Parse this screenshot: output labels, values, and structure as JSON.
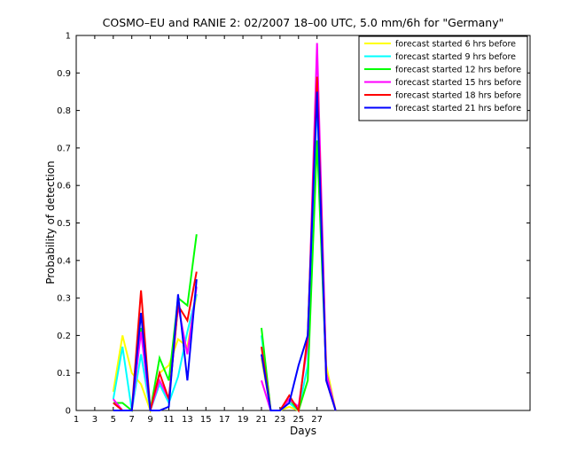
{
  "chart_data": {
    "type": "line",
    "title": "COSMO–EU and RANIE 2: 02/2007 18–00 UTC, 5.0 mm/6h for \"Germany\"",
    "xlabel": "Days",
    "ylabel": "Probability of detection",
    "xlim": [
      1,
      50
    ],
    "ylim": [
      0,
      1
    ],
    "xticks": [
      1,
      3,
      5,
      7,
      9,
      11,
      13,
      15,
      17,
      19,
      21,
      23,
      25,
      27
    ],
    "yticks": [
      0,
      0.1,
      0.2,
      0.3,
      0.4,
      0.5,
      0.6,
      0.7,
      0.8,
      0.9,
      1
    ],
    "ytick_labels": [
      "0",
      "0.1",
      "0.2",
      "0.3",
      "0.4",
      "0.5",
      "0.6",
      "0.7",
      "0.8",
      "0.9",
      "1"
    ],
    "legend_position": "top-right",
    "grid": false,
    "series": [
      {
        "name": "forecast started 6 hrs before",
        "color": "#ffff00",
        "x": [
          5,
          6,
          7,
          8,
          9,
          10,
          11,
          12,
          13,
          14,
          21,
          22,
          23,
          24,
          25,
          26,
          27,
          28,
          29
        ],
        "y": [
          0.05,
          0.2,
          0.1,
          0.07,
          0.0,
          0.1,
          0.12,
          0.19,
          0.17,
          0.31,
          0.14,
          0.0,
          0.0,
          0.01,
          0.0,
          0.08,
          0.85,
          0.12,
          0.0
        ]
      },
      {
        "name": "forecast started 9 hrs before",
        "color": "#00ffff",
        "x": [
          5,
          6,
          7,
          8,
          9,
          10,
          11,
          12,
          13,
          14,
          21,
          22,
          23,
          24,
          25,
          26,
          27,
          28,
          29
        ],
        "y": [
          0.03,
          0.17,
          0.0,
          0.15,
          0.0,
          0.07,
          0.02,
          0.09,
          0.21,
          0.31,
          0.2,
          0.0,
          0.0,
          0.02,
          0.0,
          0.12,
          0.83,
          0.1,
          0.0
        ]
      },
      {
        "name": "forecast started 12 hrs before",
        "color": "#00ff00",
        "x": [
          5,
          6,
          7,
          8,
          9,
          10,
          11,
          12,
          13,
          14,
          21,
          22,
          23,
          24,
          25,
          26,
          27,
          28,
          29
        ],
        "y": [
          0.02,
          0.02,
          0.0,
          0.22,
          0.0,
          0.14,
          0.08,
          0.3,
          0.28,
          0.47,
          0.22,
          0.0,
          0.0,
          0.03,
          0.0,
          0.08,
          0.72,
          0.1,
          0.0
        ]
      },
      {
        "name": "forecast started 15 hrs before",
        "color": "#ff00ff",
        "x": [
          5,
          6,
          7,
          8,
          9,
          10,
          11,
          12,
          13,
          14,
          21,
          22,
          23,
          24,
          25,
          26,
          27,
          28,
          29
        ],
        "y": [
          0.03,
          0.0,
          0.0,
          0.21,
          0.0,
          0.08,
          0.03,
          0.28,
          0.15,
          0.33,
          0.08,
          0.0,
          0.0,
          0.03,
          0.01,
          0.18,
          0.98,
          0.1,
          0.0
        ]
      },
      {
        "name": "forecast started 18 hrs before",
        "color": "#ff0000",
        "x": [
          5,
          6,
          7,
          8,
          9,
          10,
          11,
          12,
          13,
          14,
          21,
          22,
          23,
          24,
          25,
          26,
          27,
          28,
          29
        ],
        "y": [
          0.02,
          0.0,
          0.0,
          0.32,
          0.0,
          0.1,
          0.03,
          0.28,
          0.24,
          0.37,
          0.17,
          0.0,
          0.0,
          0.04,
          0.0,
          0.2,
          0.89,
          0.08,
          0.0
        ]
      },
      {
        "name": "forecast started 21 hrs before",
        "color": "#0000ff",
        "x": [
          5,
          6,
          7,
          8,
          9,
          10,
          11,
          12,
          13,
          14,
          21,
          22,
          23,
          24,
          25,
          26,
          27,
          28,
          29
        ],
        "y": [
          0.0,
          0.0,
          0.0,
          0.26,
          0.0,
          0.0,
          0.01,
          0.31,
          0.08,
          0.35,
          0.15,
          0.0,
          0.0,
          0.02,
          0.12,
          0.2,
          0.85,
          0.08,
          0.0
        ]
      }
    ]
  }
}
